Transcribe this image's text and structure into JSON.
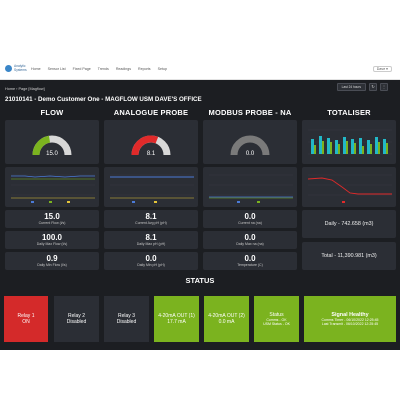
{
  "nav": {
    "logo_text": "Analytic Systems",
    "items": [
      "Home",
      "Sensor List",
      "Fixed Page",
      "Trends",
      "Readings",
      "Reports",
      "Setup"
    ],
    "user": "Dave ▾"
  },
  "dashboard": {
    "breadcrumb": "Home › Page [Magflow]",
    "title": "21010141 - Demo Customer One - MAGFLOW USM DAVE'S OFFICE",
    "time_range": "Last 24 hours",
    "refresh_icon": "refresh-icon",
    "menu_icon": "more-icon"
  },
  "sections": {
    "flow": "FLOW",
    "analogue": "ANALOGUE PROBE",
    "modbus": "MODBUS PROBE - NA",
    "totaliser": "TOTALISER"
  },
  "gauges": {
    "flow": {
      "value": "15.0",
      "fraction": 0.45,
      "color": "#7bb31f"
    },
    "analogue": {
      "value": "8.1",
      "fraction": 0.62,
      "color": "#e02a2a"
    },
    "modbus": {
      "value": "0.0",
      "fraction": 0.0,
      "color": "#7a7a7a"
    }
  },
  "stats": {
    "flow": [
      {
        "value": "15.0",
        "label": "Current Flow (l/s)"
      },
      {
        "value": "100.0",
        "label": "Daily Max Flow (l/s)"
      },
      {
        "value": "0.9",
        "label": "Daily Min Flow (l/s)"
      }
    ],
    "analogue": [
      {
        "value": "8.1",
        "label": "Current Avg pH (pH)"
      },
      {
        "value": "8.1",
        "label": "Daily Max pH (pH)"
      },
      {
        "value": "0.0",
        "label": "Daily Min pH (pH)"
      }
    ],
    "modbus": [
      {
        "value": "0.0",
        "label": "Current na (na)"
      },
      {
        "value": "0.0",
        "label": "Daily Max na (na)"
      },
      {
        "value": "0.0",
        "label": "Temperature (C)"
      }
    ]
  },
  "totaliser": {
    "daily": "Daily - 742.658 (m3)",
    "total": "Total - 11,390.981 (m3)"
  },
  "status": {
    "heading": "STATUS",
    "tiles": [
      {
        "line1": "Relay 1",
        "line2": "ON",
        "color": "#d42a2a"
      },
      {
        "line1": "Relay 2",
        "line2": "Disabled",
        "color": "#2b2e35"
      },
      {
        "line1": "Relay 3",
        "line2": "Disabled",
        "color": "#2b2e35"
      },
      {
        "line1": "4-20mA OUT (1)",
        "line2": "17.7 mA",
        "color": "#7bb31f"
      },
      {
        "line1": "4-20mA OUT (2)",
        "line2": "0.0 mA",
        "color": "#7bb31f"
      },
      {
        "line1": "Status",
        "line2": "Comms - OK",
        "line3": "USM Status - OK",
        "color": "#7bb31f"
      },
      {
        "line1": "Signal Healthy",
        "line2": "Comms Timer - 06/10/2022 12:25:45",
        "line3": "Last Transmit - 06/10/2022 12:25:45",
        "color": "#7bb31f"
      }
    ]
  }
}
